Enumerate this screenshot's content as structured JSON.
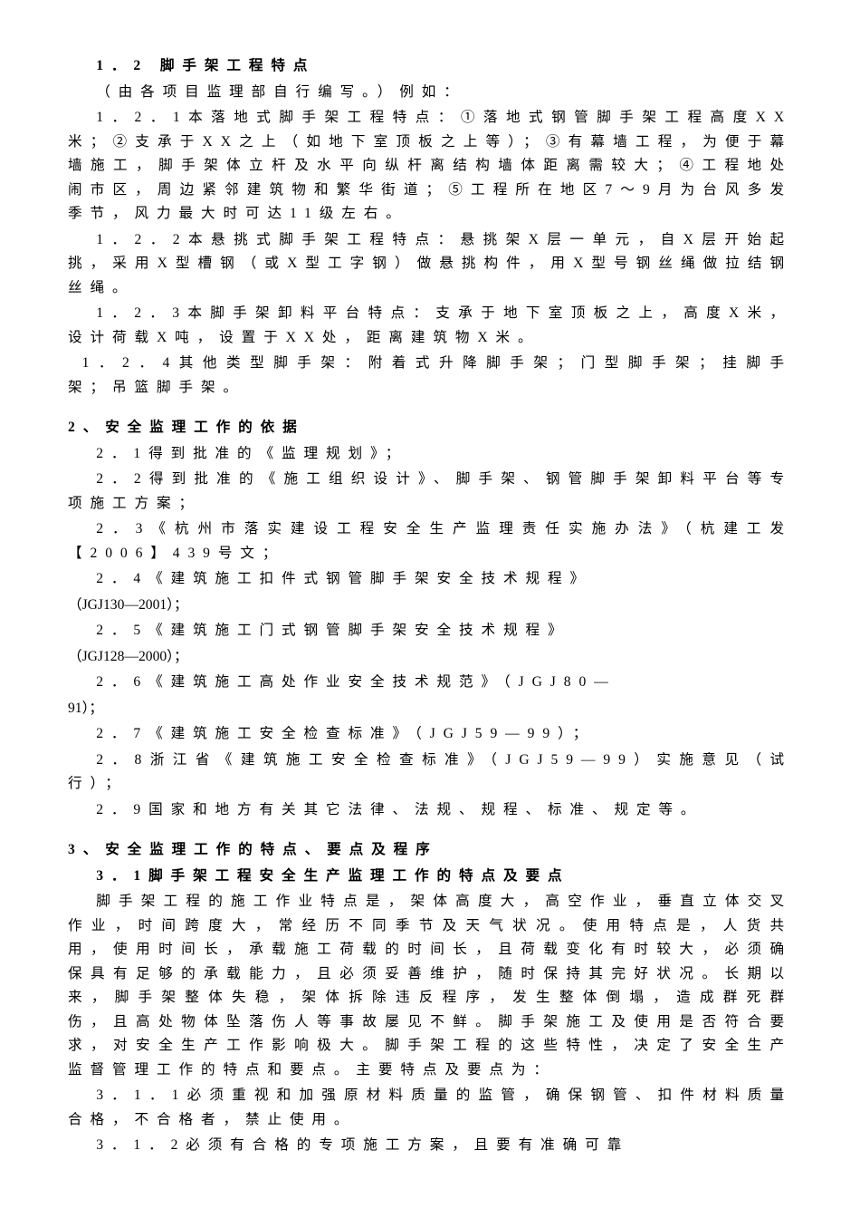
{
  "section1": {
    "title": "1．2 脚手架工程特点",
    "intro": "（由各项目监理部自行编写。）例如：",
    "p1": "1．2．1本落地式脚手架工程特点：①落地式钢管脚手架工程高度XX米；②支承于XX之上（如地下室顶板之上等）；③有幕墙工程，为便于幕墙施工，脚手架体立杆及水平向纵杆离结构墙体距离需较大；④工程地处闹市区，周边紧邻建筑物和繁华街道；⑤工程所在地区7～9月为台风多发季节，风力最大时可达11级左右。",
    "p2": "1．2．2本悬挑式脚手架工程特点：悬挑架X层一单元，自X层开始起挑，采用X型槽钢（或X型工字钢）做悬挑构件，用X型号钢丝绳做拉结钢丝绳。",
    "p3": "1．2．3本脚手架卸料平台特点：支承于地下室顶板之上，高度X米，设计荷载X吨，设置于XX处，距离建筑物X米。",
    "p4": "1．2．4其他类型脚手架：附着式升降脚手架；门型脚手架；挂脚手架；吊篮脚手架。"
  },
  "section2": {
    "title": "2、安全监理工作的依据",
    "p1": "2．1得到批准的《监理规划》；",
    "p2": "2．2得到批准的《施工组织设计》、脚手架、钢管脚手架卸料平台等专项施工方案；",
    "p3": "2．3《杭州市落实建设工程安全生产监理责任实施办法》（杭建工发【2006】439号文；",
    "p4": "2．4《建筑施工扣件式钢管脚手架安全技术规程》",
    "ref4": "（JGJ130—2001）；",
    "p5": "2．5《建筑施工门式钢管脚手架安全技术规程》",
    "ref5": "（JGJ128—2000）；",
    "p6": "2．6《建筑施工高处作业安全技术规范》（JGJ80—",
    "ref6": "91）；",
    "p7": "2．7《建筑施工安全检查标准》（JGJ59—99）；",
    "p8": "2．8浙江省《建筑施工安全检查标准》（JGJ59—99）实施意见（试行）；",
    "p9": "2．9国家和地方有关其它法律、法规、规程、标准、规定等。"
  },
  "section3": {
    "title": "3、安全监理工作的特点、要点及程序",
    "subtitle": "3．1脚手架工程安全生产监理工作的特点及要点",
    "p1": "脚手架工程的施工作业特点是，架体高度大，高空作业，垂直立体交叉作业，时间跨度大，常经历不同季节及天气状况。使用特点是，人货共用，使用时间长，承载施工荷载的时间长，且荷载变化有时较大，必须确保具有足够的承载能力，且必须妥善维护，随时保持其完好状况。长期以来，脚手架整体失稳，架体拆除违反程序，发生整体倒塌，造成群死群伤，且高处物体坠落伤人等事故屡见不鲜。脚手架施工及使用是否符合要求，对安全生产工作影响极大。脚手架工程的这些特性，决定了安全生产监督管理工作的特点和要点。主要特点及要点为：",
    "p2": "3．1．1必须重视和加强原材料质量的监管，确保钢管、扣件材料质量合格，不合格者，禁止使用。",
    "p3": "3．1．2必须有合格的专项施工方案，且要有准确可靠"
  }
}
